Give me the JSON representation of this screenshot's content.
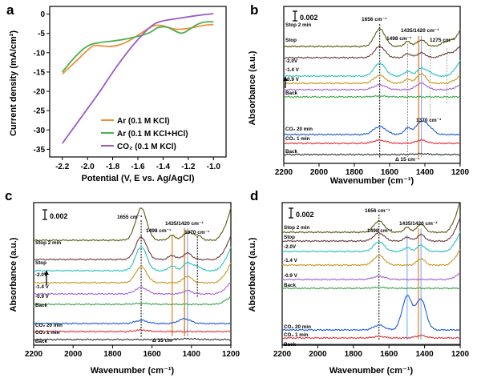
{
  "chart_data": [
    {
      "panel": "a",
      "type": "line",
      "xlabel": "Potential (V, E vs. Ag/AgCl)",
      "ylabel": "Current density (mA/cm²)",
      "xlim": [
        -2.3,
        -0.9
      ],
      "ylim": [
        -37,
        2
      ],
      "x_ticks": [
        "-2.2",
        "-2.0",
        "-1.8",
        "-1.6",
        "-1.4",
        "-1.2",
        "-1.0"
      ],
      "y_ticks": [
        "0",
        "-5",
        "-10",
        "-15",
        "-20",
        "-25",
        "-30",
        "-35"
      ],
      "legend_position": "bottom-right",
      "series": [
        {
          "name": "Ar (0.1 M KCl)",
          "color": "#f0903a",
          "x": [
            -2.2,
            -2.1,
            -2.0,
            -1.95,
            -1.9,
            -1.8,
            -1.7,
            -1.6,
            -1.5,
            -1.45,
            -1.4,
            -1.35,
            -1.3,
            -1.2,
            -1.1,
            -1.05,
            -1.0
          ],
          "y": [
            -15.5,
            -12.5,
            -9.3,
            -8.0,
            -8.2,
            -8.5,
            -7.5,
            -5.5,
            -3.3,
            -2.8,
            -3.0,
            -3.5,
            -4.0,
            -3.8,
            -3.0,
            -2.8,
            -2.7
          ]
        },
        {
          "name": "Ar (0.1 M KCl+HCl)",
          "color": "#4caf50",
          "x": [
            -2.2,
            -2.1,
            -2.0,
            -1.9,
            -1.8,
            -1.7,
            -1.6,
            -1.5,
            -1.45,
            -1.4,
            -1.35,
            -1.3,
            -1.25,
            -1.2,
            -1.15,
            -1.1,
            -1.05,
            -1.0
          ],
          "y": [
            -15.0,
            -11.0,
            -8.0,
            -7.3,
            -7.0,
            -6.5,
            -5.8,
            -4.8,
            -3.5,
            -3.2,
            -3.5,
            -4.5,
            -5.1,
            -4.2,
            -3.0,
            -2.2,
            -2.0,
            -2.0
          ]
        },
        {
          "name": "CO₂ (0.1 M KCl)",
          "color": "#9b59c6",
          "x": [
            -2.2,
            -2.1,
            -2.0,
            -1.9,
            -1.8,
            -1.7,
            -1.6,
            -1.5,
            -1.45,
            -1.4,
            -1.3,
            -1.2,
            -1.1,
            -1.0
          ],
          "y": [
            -33.5,
            -29.0,
            -24.5,
            -20.0,
            -15.0,
            -10.5,
            -6.5,
            -3.2,
            -2.2,
            -1.7,
            -1.2,
            -0.7,
            -0.2,
            0.1
          ]
        }
      ]
    },
    {
      "panel": "b",
      "type": "line",
      "xlabel": "Wavenumber (cm⁻¹)",
      "ylabel": "Absorbance (a.u.)",
      "xlim": [
        2200,
        1200
      ],
      "x_ticks": [
        "2200",
        "2000",
        "1800",
        "1600",
        "1400",
        "1200"
      ],
      "scale_label": "0.002",
      "trace_labels": [
        "Stop 2 min",
        "Stop",
        "-2.0V",
        "-1.4 V",
        "-0.9 V",
        "Back",
        "CO₂ 20 min",
        "CO₂ 1 min",
        "Back"
      ],
      "annotations": [
        "1656 cm⁻¹",
        "1498 cm⁻¹",
        "1435/1420 cm⁻¹",
        "1275 cm⁻¹",
        "1370 cm⁻¹",
        "Δ 15 cm⁻¹"
      ]
    },
    {
      "panel": "c",
      "type": "line",
      "xlabel": "Wavenumber (cm⁻¹)",
      "ylabel": "Absorbance (a.u.)",
      "xlim": [
        2200,
        1200
      ],
      "x_ticks": [
        "2200",
        "2000",
        "1800",
        "1600",
        "1400",
        "1200"
      ],
      "scale_label": "0.002",
      "trace_labels": [
        "Stop 2 min",
        "Stop",
        "-2.0V",
        "-1.4 V",
        "-0.9 V",
        "Back",
        "CO₂ 20 min",
        "CO₂ 1 min",
        "Back"
      ],
      "annotations": [
        "1655 cm⁻¹",
        "1498 cm⁻¹",
        "1435/1420 cm⁻¹",
        "1370 cm⁻¹",
        "Δ 15 cm⁻¹"
      ]
    },
    {
      "panel": "d",
      "type": "line",
      "xlabel": "Wavenumber (cm⁻¹)",
      "ylabel": "Absorbance (a.u.)",
      "xlim": [
        2200,
        1200
      ],
      "x_ticks": [
        "2200",
        "2000",
        "1800",
        "1600",
        "1400",
        "1200"
      ],
      "scale_label": "0.002",
      "trace_labels": [
        "Stop 2 min",
        "Stop",
        "-2.0V",
        "-1.4 V",
        "-0.9 V",
        "Back",
        "CO₂ 20 min",
        "CO₂ 1 min",
        "Back"
      ],
      "annotations": [
        "1656 cm⁻¹",
        "1498 cm⁻¹",
        "1435/1420 cm⁻¹"
      ]
    }
  ],
  "trace_colors": [
    "#5a5a10",
    "#6b3b3b",
    "#27c2c2",
    "#c89620",
    "#a463d6",
    "#3aa84a",
    "#1f5bd6",
    "#e0323a",
    "#333333"
  ]
}
